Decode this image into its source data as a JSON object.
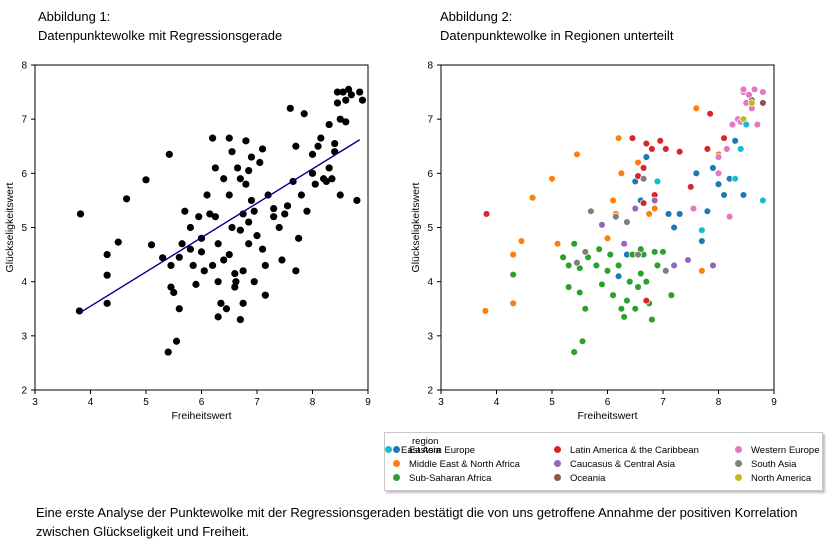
{
  "figure1": {
    "title_line1": "Abbildung 1:",
    "title_line2": "Datenpunktewolke mit Regressionsgerade"
  },
  "figure2": {
    "title_line1": "Abbildung 2:",
    "title_line2": "Datenpunktewolke in Regionen unterteilt"
  },
  "caption": "Eine erste Analyse der Punktewolke mit der Regressionsgeraden bestätigt die von uns getroffene Annahme der positiven Korrelation zwischen Glückseligkeit und Freiheit.",
  "chart_data": [
    {
      "type": "scatter",
      "title": "",
      "xlabel": "Freiheitswert",
      "ylabel": "Glückseligkeitswert",
      "xlim": [
        3,
        9
      ],
      "ylim": [
        2,
        8
      ],
      "xticks": [
        "3",
        "4",
        "5",
        "6",
        "7",
        "8",
        "9"
      ],
      "yticks": [
        "2",
        "3",
        "4",
        "5",
        "6",
        "7",
        "8"
      ],
      "point_color": "#000000",
      "regression_line": {
        "color": "#00008b",
        "start": [
          3.8,
          3.42
        ],
        "end": [
          8.85,
          6.62
        ]
      },
      "points": [
        [
          3.8,
          3.46
        ],
        [
          3.82,
          5.25
        ],
        [
          4.3,
          4.5
        ],
        [
          4.3,
          4.12
        ],
        [
          4.3,
          3.6
        ],
        [
          4.5,
          4.73
        ],
        [
          4.65,
          5.53
        ],
        [
          5.0,
          5.88
        ],
        [
          5.1,
          4.68
        ],
        [
          5.3,
          4.44
        ],
        [
          5.4,
          2.7
        ],
        [
          5.42,
          6.35
        ],
        [
          5.45,
          4.3
        ],
        [
          5.45,
          3.9
        ],
        [
          5.5,
          3.8
        ],
        [
          5.55,
          2.9
        ],
        [
          5.6,
          4.45
        ],
        [
          5.6,
          3.5
        ],
        [
          5.65,
          4.7
        ],
        [
          5.7,
          5.3
        ],
        [
          5.8,
          5.0
        ],
        [
          5.8,
          4.6
        ],
        [
          5.85,
          4.3
        ],
        [
          5.9,
          3.95
        ],
        [
          5.95,
          5.2
        ],
        [
          6.0,
          4.8
        ],
        [
          6.0,
          4.55
        ],
        [
          6.05,
          4.2
        ],
        [
          6.1,
          5.6
        ],
        [
          6.15,
          5.25
        ],
        [
          6.2,
          6.65
        ],
        [
          6.2,
          4.3
        ],
        [
          6.25,
          5.2
        ],
        [
          6.25,
          6.1
        ],
        [
          6.3,
          4.7
        ],
        [
          6.3,
          4.0
        ],
        [
          6.3,
          3.35
        ],
        [
          6.35,
          3.6
        ],
        [
          6.4,
          4.4
        ],
        [
          6.4,
          5.9
        ],
        [
          6.45,
          3.5
        ],
        [
          6.5,
          6.65
        ],
        [
          6.5,
          5.6
        ],
        [
          6.5,
          4.5
        ],
        [
          6.55,
          5.0
        ],
        [
          6.55,
          6.4
        ],
        [
          6.6,
          4.15
        ],
        [
          6.6,
          3.9
        ],
        [
          6.62,
          4.0
        ],
        [
          6.65,
          6.1
        ],
        [
          6.7,
          5.9
        ],
        [
          6.7,
          4.95
        ],
        [
          6.7,
          3.3
        ],
        [
          6.75,
          5.25
        ],
        [
          6.75,
          4.2
        ],
        [
          6.75,
          3.6
        ],
        [
          6.8,
          6.6
        ],
        [
          6.8,
          5.8
        ],
        [
          6.85,
          5.1
        ],
        [
          6.85,
          4.7
        ],
        [
          6.9,
          6.3
        ],
        [
          6.9,
          5.5
        ],
        [
          6.95,
          5.3
        ],
        [
          6.95,
          4.0
        ],
        [
          7.0,
          4.85
        ],
        [
          7.05,
          6.2
        ],
        [
          7.1,
          6.45
        ],
        [
          7.1,
          4.6
        ],
        [
          7.15,
          4.3
        ],
        [
          7.15,
          3.75
        ],
        [
          7.2,
          5.6
        ],
        [
          7.3,
          5.35
        ],
        [
          7.3,
          5.2
        ],
        [
          7.4,
          5.0
        ],
        [
          7.45,
          4.4
        ],
        [
          7.5,
          5.25
        ],
        [
          7.55,
          5.4
        ],
        [
          7.6,
          7.2
        ],
        [
          7.65,
          5.85
        ],
        [
          7.7,
          6.5
        ],
        [
          7.7,
          4.2
        ],
        [
          7.75,
          4.8
        ],
        [
          7.8,
          5.6
        ],
        [
          7.85,
          7.1
        ],
        [
          7.9,
          5.3
        ],
        [
          8.0,
          6.35
        ],
        [
          8.0,
          6.0
        ],
        [
          8.05,
          5.8
        ],
        [
          8.1,
          6.5
        ],
        [
          8.15,
          6.65
        ],
        [
          8.2,
          5.9
        ],
        [
          8.25,
          5.85
        ],
        [
          8.3,
          6.9
        ],
        [
          8.3,
          6.1
        ],
        [
          8.35,
          5.9
        ],
        [
          8.4,
          6.55
        ],
        [
          8.4,
          6.4
        ],
        [
          8.45,
          7.5
        ],
        [
          8.45,
          7.3
        ],
        [
          8.5,
          7.0
        ],
        [
          8.5,
          5.6
        ],
        [
          8.55,
          7.5
        ],
        [
          8.6,
          7.35
        ],
        [
          8.6,
          6.95
        ],
        [
          8.65,
          7.55
        ],
        [
          8.7,
          7.45
        ],
        [
          8.8,
          5.5
        ],
        [
          8.85,
          7.5
        ],
        [
          8.9,
          7.35
        ],
        [
          6.85,
          6.05
        ]
      ]
    },
    {
      "type": "scatter",
      "title": "",
      "xlabel": "Freiheitswert",
      "ylabel": "Glückseligkeitswert",
      "xlim": [
        3,
        9
      ],
      "ylim": [
        2,
        8
      ],
      "xticks": [
        "3",
        "4",
        "5",
        "6",
        "7",
        "8",
        "9"
      ],
      "yticks": [
        "2",
        "3",
        "4",
        "5",
        "6",
        "7",
        "8"
      ],
      "legend_title": "region",
      "legend_position": "bottom",
      "series": [
        {
          "name": "Eastern Europe",
          "color": "#1f77b4",
          "points": [
            [
              6.35,
              4.5
            ],
            [
              6.5,
              5.85
            ],
            [
              6.6,
              5.5
            ],
            [
              6.7,
              6.3
            ],
            [
              6.9,
              5.85
            ],
            [
              7.1,
              5.25
            ],
            [
              7.2,
              5.0
            ],
            [
              7.3,
              5.25
            ],
            [
              7.6,
              6.0
            ],
            [
              7.7,
              4.75
            ],
            [
              7.8,
              5.3
            ],
            [
              7.9,
              6.1
            ],
            [
              8.0,
              5.8
            ],
            [
              8.1,
              5.6
            ],
            [
              8.2,
              5.9
            ],
            [
              8.3,
              6.6
            ],
            [
              8.45,
              5.6
            ],
            [
              6.2,
              4.1
            ]
          ]
        },
        {
          "name": "Middle East & North Africa",
          "color": "#ff7f0e",
          "points": [
            [
              3.8,
              3.46
            ],
            [
              4.3,
              3.6
            ],
            [
              4.3,
              4.5
            ],
            [
              4.45,
              4.75
            ],
            [
              4.65,
              5.55
            ],
            [
              5.0,
              5.9
            ],
            [
              5.1,
              4.7
            ],
            [
              5.45,
              6.35
            ],
            [
              6.0,
              4.8
            ],
            [
              6.15,
              5.25
            ],
            [
              6.2,
              6.65
            ],
            [
              6.25,
              6.0
            ],
            [
              6.55,
              6.2
            ],
            [
              6.75,
              5.25
            ],
            [
              6.85,
              5.35
            ],
            [
              7.6,
              7.2
            ],
            [
              7.7,
              4.2
            ],
            [
              8.0,
              6.35
            ],
            [
              6.1,
              5.5
            ]
          ]
        },
        {
          "name": "Sub-Saharan Africa",
          "color": "#2ca02c",
          "points": [
            [
              4.3,
              4.13
            ],
            [
              5.2,
              4.45
            ],
            [
              5.3,
              4.3
            ],
            [
              5.3,
              3.9
            ],
            [
              5.4,
              4.7
            ],
            [
              5.4,
              2.7
            ],
            [
              5.5,
              4.25
            ],
            [
              5.5,
              3.8
            ],
            [
              5.55,
              2.9
            ],
            [
              5.6,
              3.5
            ],
            [
              5.65,
              4.45
            ],
            [
              5.8,
              4.3
            ],
            [
              5.85,
              4.6
            ],
            [
              5.9,
              3.95
            ],
            [
              6.0,
              4.2
            ],
            [
              6.05,
              4.5
            ],
            [
              6.1,
              3.75
            ],
            [
              6.2,
              4.3
            ],
            [
              6.25,
              3.5
            ],
            [
              6.3,
              3.35
            ],
            [
              6.35,
              3.65
            ],
            [
              6.4,
              4.0
            ],
            [
              6.45,
              4.5
            ],
            [
              6.5,
              3.5
            ],
            [
              6.55,
              3.9
            ],
            [
              6.6,
              4.15
            ],
            [
              6.65,
              4.5
            ],
            [
              6.7,
              4.0
            ],
            [
              6.75,
              3.6
            ],
            [
              6.8,
              3.3
            ],
            [
              6.85,
              4.55
            ],
            [
              6.9,
              4.3
            ],
            [
              7.0,
              4.55
            ],
            [
              7.15,
              3.75
            ],
            [
              6.6,
              4.6
            ]
          ]
        },
        {
          "name": "Latin America & the Caribbean",
          "color": "#d62728",
          "points": [
            [
              3.82,
              5.25
            ],
            [
              6.45,
              6.65
            ],
            [
              6.55,
              5.95
            ],
            [
              6.65,
              6.1
            ],
            [
              6.7,
              6.55
            ],
            [
              6.8,
              6.45
            ],
            [
              6.85,
              5.6
            ],
            [
              6.95,
              6.6
            ],
            [
              7.05,
              6.45
            ],
            [
              7.3,
              6.4
            ],
            [
              7.5,
              5.75
            ],
            [
              7.8,
              6.45
            ],
            [
              7.85,
              7.1
            ],
            [
              8.0,
              6.3
            ],
            [
              8.1,
              6.65
            ],
            [
              6.65,
              5.45
            ],
            [
              6.7,
              3.65
            ]
          ]
        },
        {
          "name": "Caucasus & Central Asia",
          "color": "#9467bd",
          "points": [
            [
              5.9,
              5.05
            ],
            [
              6.3,
              4.7
            ],
            [
              6.85,
              5.5
            ],
            [
              7.2,
              4.3
            ],
            [
              7.45,
              4.4
            ],
            [
              7.9,
              4.3
            ],
            [
              6.5,
              5.35
            ]
          ]
        },
        {
          "name": "Oceania",
          "color": "#8c564b",
          "points": [
            [
              8.8,
              7.3
            ],
            [
              8.6,
              7.35
            ]
          ]
        },
        {
          "name": "Western Europe",
          "color": "#e377c2",
          "points": [
            [
              7.55,
              5.35
            ],
            [
              8.0,
              6.3
            ],
            [
              8.15,
              6.45
            ],
            [
              8.2,
              5.2
            ],
            [
              8.25,
              6.9
            ],
            [
              8.35,
              7.0
            ],
            [
              8.4,
              6.45
            ],
            [
              8.45,
              7.5
            ],
            [
              8.5,
              7.3
            ],
            [
              8.55,
              7.45
            ],
            [
              8.6,
              7.2
            ],
            [
              8.65,
              7.55
            ],
            [
              8.7,
              6.9
            ],
            [
              8.8,
              7.5
            ],
            [
              8.45,
              7.55
            ],
            [
              8.4,
              6.95
            ],
            [
              8.0,
              6.0
            ]
          ]
        },
        {
          "name": "South Asia",
          "color": "#7f7f7f",
          "points": [
            [
              5.45,
              4.35
            ],
            [
              5.6,
              4.55
            ],
            [
              5.7,
              5.3
            ],
            [
              6.15,
              5.2
            ],
            [
              6.35,
              5.1
            ],
            [
              6.55,
              4.5
            ],
            [
              7.05,
              4.2
            ],
            [
              6.65,
              5.9
            ]
          ]
        },
        {
          "name": "North America",
          "color": "#bcbd22",
          "points": [
            [
              8.45,
              7.0
            ],
            [
              8.6,
              7.3
            ]
          ]
        },
        {
          "name": "East Asia",
          "color": "#17becf",
          "points": [
            [
              7.7,
              4.95
            ],
            [
              8.3,
              5.9
            ],
            [
              8.4,
              6.45
            ],
            [
              8.8,
              5.5
            ],
            [
              6.9,
              5.85
            ],
            [
              8.5,
              6.9
            ]
          ]
        }
      ]
    }
  ]
}
